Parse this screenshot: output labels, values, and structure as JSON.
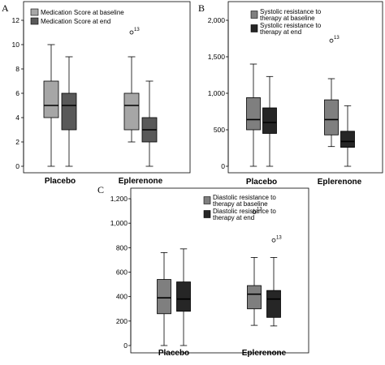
{
  "panels": [
    {
      "letter": "A",
      "chart_data": {
        "type": "boxplot",
        "categories": [
          "Placebo",
          "Eplerenone"
        ],
        "ylim": [
          0,
          12
        ],
        "yticks": [
          0,
          2,
          4,
          6,
          8,
          10,
          12
        ],
        "grid": false,
        "legend_position": "top-left",
        "series": [
          {
            "name": "Medication Score at baseline",
            "color": "#a6a6a6",
            "boxes": [
              {
                "min": 0,
                "q1": 4,
                "median": 5,
                "q3": 7,
                "max": 10,
                "outliers": []
              },
              {
                "min": 2,
                "q1": 3,
                "median": 5,
                "q3": 6,
                "max": 9,
                "outliers": [
                  {
                    "value": 11,
                    "label": "13"
                  }
                ]
              }
            ]
          },
          {
            "name": "Medication Score at end",
            "color": "#595959",
            "boxes": [
              {
                "min": 0,
                "q1": 3,
                "median": 5,
                "q3": 6,
                "max": 9,
                "outliers": []
              },
              {
                "min": 0,
                "q1": 2,
                "median": 3,
                "q3": 4,
                "max": 7,
                "outliers": []
              }
            ]
          }
        ]
      }
    },
    {
      "letter": "B",
      "chart_data": {
        "type": "boxplot",
        "categories": [
          "Placebo",
          "Eplerenone"
        ],
        "ylim": [
          0,
          2000
        ],
        "yticks": [
          0,
          500,
          1000,
          1500,
          2000
        ],
        "ytick_labels": [
          "0",
          "500",
          "1,000",
          "1,500",
          "2,000"
        ],
        "grid": false,
        "legend_position": "top-center",
        "series": [
          {
            "name": "Systolic resistance to therapy at baseline",
            "color": "#7f7f7f",
            "boxes": [
              {
                "min": 0,
                "q1": 500,
                "median": 640,
                "q3": 940,
                "max": 1400,
                "outliers": []
              },
              {
                "min": 270,
                "q1": 430,
                "median": 640,
                "q3": 910,
                "max": 1200,
                "outliers": [
                  {
                    "value": 1720,
                    "label": "13"
                  }
                ]
              }
            ]
          },
          {
            "name": "Systolic resistance to therapy at end",
            "color": "#262626",
            "boxes": [
              {
                "min": 0,
                "q1": 450,
                "median": 600,
                "q3": 800,
                "max": 1230,
                "outliers": []
              },
              {
                "min": 0,
                "q1": 260,
                "median": 340,
                "q3": 480,
                "max": 830,
                "outliers": []
              }
            ]
          }
        ]
      }
    },
    {
      "letter": "C",
      "chart_data": {
        "type": "boxplot",
        "categories": [
          "Placebo",
          "Eplerenone"
        ],
        "ylim": [
          0,
          1200
        ],
        "yticks": [
          0,
          200,
          400,
          600,
          800,
          1000,
          1200
        ],
        "ytick_labels": [
          "0",
          "200",
          "400",
          "600",
          "800",
          "1,000",
          "1,200"
        ],
        "grid": false,
        "legend_position": "top-center",
        "series": [
          {
            "name": "Diastolic resistance to therapy at baseline",
            "color": "#7f7f7f",
            "boxes": [
              {
                "min": 0,
                "q1": 260,
                "median": 390,
                "q3": 540,
                "max": 760,
                "outliers": []
              },
              {
                "min": 165,
                "q1": 300,
                "median": 420,
                "q3": 490,
                "max": 720,
                "outliers": [
                  {
                    "value": 1090,
                    "label": "13"
                  }
                ]
              }
            ]
          },
          {
            "name": "Diastolic resistance to therapy at end",
            "color": "#262626",
            "boxes": [
              {
                "min": 0,
                "q1": 280,
                "median": 380,
                "q3": 520,
                "max": 790,
                "outliers": []
              },
              {
                "min": 160,
                "q1": 230,
                "median": 380,
                "q3": 450,
                "max": 720,
                "outliers": [
                  {
                    "value": 860,
                    "label": "13"
                  }
                ]
              }
            ]
          }
        ]
      }
    }
  ]
}
